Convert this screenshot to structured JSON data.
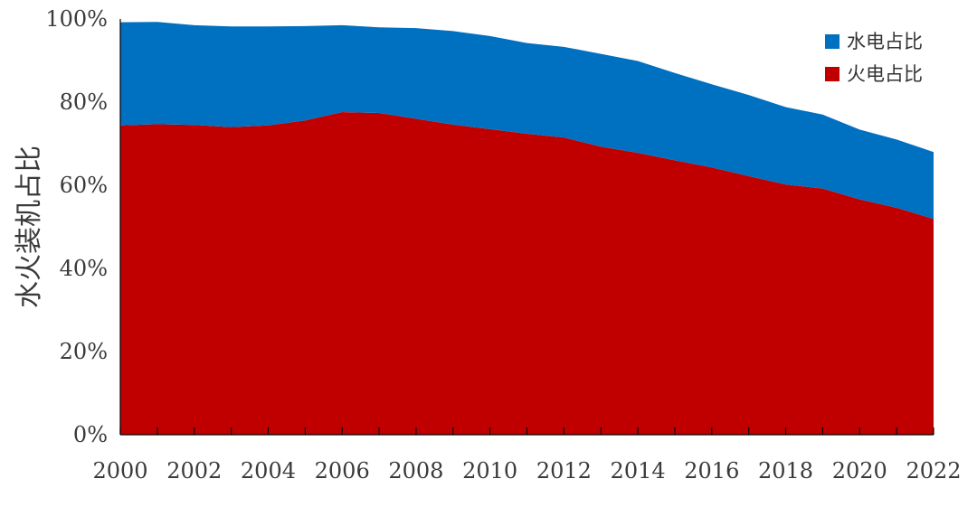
{
  "chart_data": {
    "type": "area",
    "stacked": true,
    "x": [
      2000,
      2001,
      2002,
      2003,
      2004,
      2005,
      2006,
      2007,
      2008,
      2009,
      2010,
      2011,
      2012,
      2013,
      2014,
      2015,
      2016,
      2017,
      2018,
      2019,
      2020,
      2021,
      2022
    ],
    "x_tick_labels": [
      "2000",
      "2002",
      "2004",
      "2006",
      "2008",
      "2010",
      "2012",
      "2014",
      "2016",
      "2018",
      "2020",
      "2022"
    ],
    "ylabel": "水火装机占比",
    "ylim": [
      0,
      100
    ],
    "y_tick_labels": [
      "0%",
      "20%",
      "40%",
      "60%",
      "80%",
      "100%"
    ],
    "grid": false,
    "legend_position": "top-right",
    "series": [
      {
        "name": "火电占比",
        "color": "#C00000",
        "values": [
          74.4,
          74.7,
          74.5,
          74.0,
          74.4,
          75.6,
          77.6,
          77.4,
          76.0,
          74.6,
          73.5,
          72.4,
          71.5,
          69.3,
          67.8,
          66.0,
          64.3,
          62.2,
          60.2,
          59.2,
          56.6,
          54.6,
          51.9
        ]
      },
      {
        "name": "水电占比",
        "color": "#0070C0",
        "values": [
          24.8,
          24.6,
          24.0,
          24.2,
          23.8,
          22.7,
          20.9,
          20.6,
          21.8,
          22.5,
          22.4,
          21.8,
          21.8,
          22.3,
          22.1,
          21.0,
          20.0,
          19.5,
          18.6,
          17.8,
          16.8,
          16.4,
          16.1
        ]
      }
    ]
  }
}
